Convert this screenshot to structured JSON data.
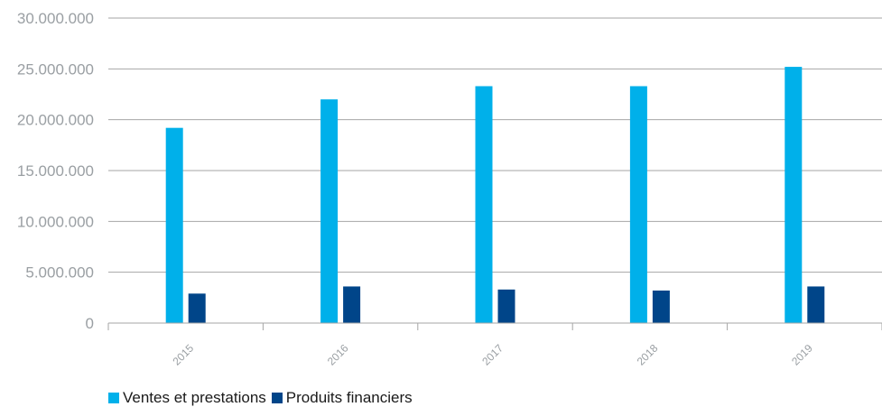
{
  "chart_data": {
    "type": "bar",
    "categories": [
      "2015",
      "2016",
      "2017",
      "2018",
      "2019"
    ],
    "series": [
      {
        "name": "Ventes et prestations",
        "values": [
          19200000,
          22000000,
          23300000,
          23300000,
          25200000
        ],
        "color": "#00b0ea"
      },
      {
        "name": "Produits financiers",
        "values": [
          2900000,
          3600000,
          3300000,
          3200000,
          3600000
        ],
        "color": "#004589"
      }
    ],
    "yticks": [
      "0",
      "5.000.000",
      "10.000.000",
      "15.000.000",
      "20.000.000",
      "25.000.000",
      "30.000.000"
    ],
    "ylim": [
      0,
      30000000
    ],
    "grid": true,
    "legend": "bottom-left"
  }
}
